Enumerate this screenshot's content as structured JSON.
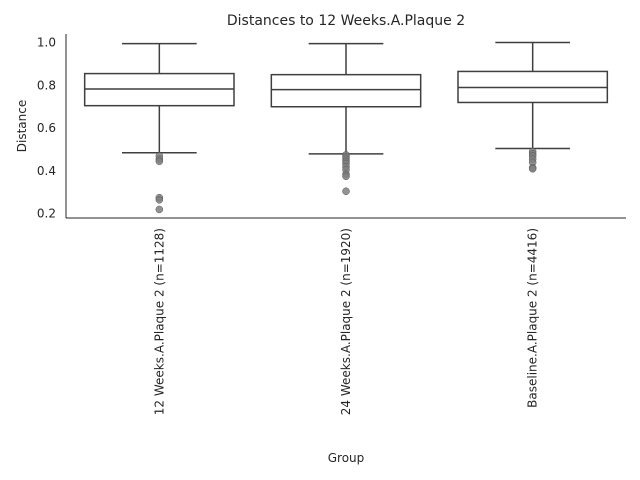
{
  "chart_data": {
    "type": "box",
    "title": "Distances to 12 Weeks.A.Plaque 2",
    "xlabel": "Group",
    "ylabel": "Distance",
    "ylim": [
      0.18,
      1.04
    ],
    "yticks": [
      0.2,
      0.4,
      0.6,
      0.8,
      1.0
    ],
    "ytick_labels": [
      "0.2",
      "0.4",
      "0.6",
      "0.8",
      "1.0"
    ],
    "grid": false,
    "categories": [
      "12 Weeks.A.Plaque 2 (n=1128)",
      "24 Weeks.A.Plaque 2 (n=1920)",
      "Baseline.A.Plaque 2 (n=4416)"
    ],
    "boxes": [
      {
        "whisker_low": 0.485,
        "q1": 0.705,
        "median": 0.783,
        "q3": 0.855,
        "whisker_high": 0.995,
        "outliers": [
          0.47,
          0.455,
          0.445,
          0.275,
          0.265,
          0.22
        ]
      },
      {
        "whisker_low": 0.48,
        "q1": 0.7,
        "median": 0.78,
        "q3": 0.85,
        "whisker_high": 0.995,
        "outliers": [
          0.475,
          0.465,
          0.455,
          0.445,
          0.435,
          0.42,
          0.405,
          0.385,
          0.375,
          0.305
        ]
      },
      {
        "whisker_low": 0.505,
        "q1": 0.72,
        "median": 0.79,
        "q3": 0.865,
        "whisker_high": 1.0,
        "outliers": [
          0.49,
          0.48,
          0.47,
          0.455,
          0.44,
          0.415,
          0.41
        ]
      }
    ],
    "colors": {
      "box_fill": "#ffffff",
      "line": "#3f3f3f",
      "outlier": "#7f7f7f",
      "axis": "#262626"
    }
  }
}
